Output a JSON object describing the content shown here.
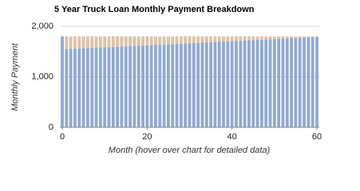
{
  "chart_data": {
    "type": "stacked_bar",
    "title": "5 Year Truck Loan Monthly Payment Breakdown",
    "x_label": "Month (hover over chart for detailed data)",
    "y_label": "Monthly Payment",
    "x": [
      0,
      1,
      2,
      3,
      4,
      5,
      6,
      7,
      8,
      9,
      10,
      11,
      12,
      13,
      14,
      15,
      16,
      17,
      18,
      19,
      20,
      21,
      22,
      23,
      24,
      25,
      26,
      27,
      28,
      29,
      30,
      31,
      32,
      33,
      34,
      35,
      36,
      37,
      38,
      39,
      40,
      41,
      42,
      43,
      44,
      45,
      46,
      47,
      48,
      49,
      50,
      51,
      52,
      53,
      54,
      55,
      56,
      57,
      58,
      59,
      60
    ],
    "xlim": [
      0,
      60
    ],
    "xticks": [
      0,
      20,
      40,
      60
    ],
    "ylim": [
      0,
      2000
    ],
    "yticks": [
      0,
      {
        "value": 1000,
        "label": "1,000"
      },
      {
        "value": 2000,
        "label": "2,000"
      }
    ],
    "grid": true,
    "series": [
      {
        "color": "#8fa9d1",
        "values": [
          1800,
          1550,
          1554,
          1558,
          1561,
          1565,
          1569,
          1573,
          1577,
          1581,
          1584,
          1588,
          1592,
          1596,
          1600,
          1604,
          1608,
          1612,
          1615,
          1619,
          1623,
          1627,
          1631,
          1635,
          1639,
          1643,
          1647,
          1651,
          1656,
          1660,
          1664,
          1668,
          1672,
          1676,
          1680,
          1684,
          1688,
          1693,
          1697,
          1701,
          1705,
          1709,
          1713,
          1717,
          1722,
          1726,
          1730,
          1734,
          1738,
          1743,
          1747,
          1751,
          1755,
          1760,
          1764,
          1768,
          1773,
          1777,
          1781,
          1786,
          1790
        ]
      },
      {
        "color": "#dfc1a8",
        "values": [
          0,
          250,
          246,
          242,
          239,
          235,
          231,
          227,
          223,
          219,
          216,
          212,
          208,
          204,
          200,
          196,
          192,
          188,
          185,
          181,
          177,
          173,
          169,
          165,
          161,
          157,
          153,
          149,
          144,
          140,
          136,
          132,
          128,
          124,
          120,
          116,
          112,
          107,
          103,
          99,
          95,
          91,
          87,
          83,
          78,
          74,
          70,
          66,
          62,
          57,
          53,
          49,
          45,
          40,
          36,
          32,
          27,
          23,
          19,
          14,
          10
        ]
      }
    ]
  }
}
